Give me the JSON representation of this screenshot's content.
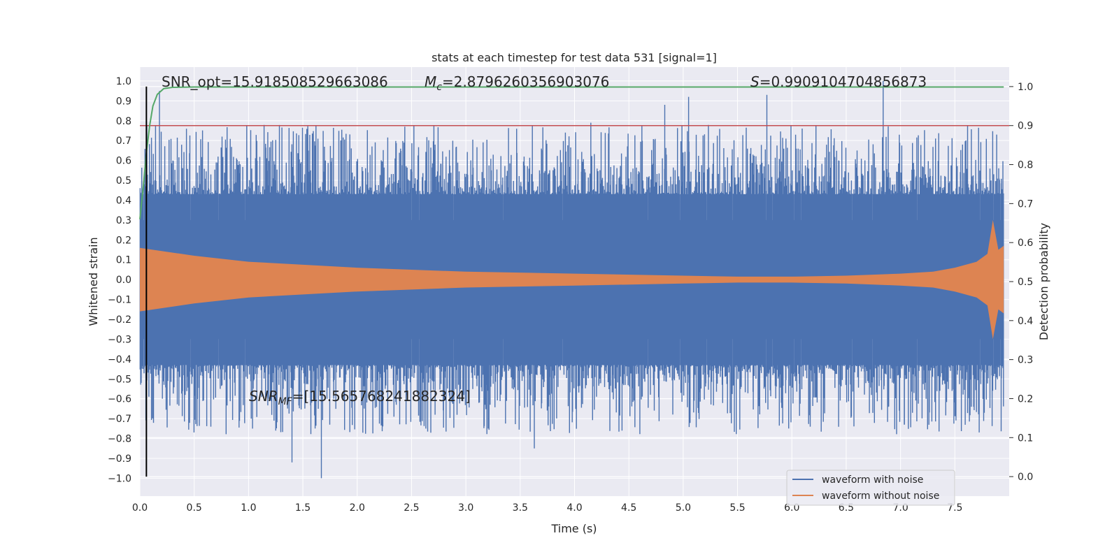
{
  "chart_data": {
    "type": "line",
    "title": "stats at each timestep for test data 531 [signal=1]",
    "xlabel": "Time (s)",
    "ylabel": "Whitened strain",
    "y2label": "Detection probability",
    "xlim": [
      0.0,
      8.0
    ],
    "ylim": [
      -1.09,
      1.07
    ],
    "y2lim": [
      -0.05,
      1.05
    ],
    "xticks": [
      0.0,
      0.5,
      1.0,
      1.5,
      2.0,
      2.5,
      3.0,
      3.5,
      4.0,
      4.5,
      5.0,
      5.5,
      6.0,
      6.5,
      7.0,
      7.5
    ],
    "xtick_labels": [
      "0.0",
      "0.5",
      "1.0",
      "1.5",
      "2.0",
      "2.5",
      "3.0",
      "3.5",
      "4.0",
      "4.5",
      "5.0",
      "5.5",
      "6.0",
      "6.5",
      "7.0",
      "7.5"
    ],
    "yticks": [
      1.0,
      0.9,
      0.8,
      0.7,
      0.6,
      0.5,
      0.4,
      0.3,
      0.2,
      0.1,
      0.0,
      -0.1,
      -0.2,
      -0.3,
      -0.4,
      -0.5,
      -0.6,
      -0.7,
      -0.8,
      -0.9,
      -1.0
    ],
    "ytick_labels": [
      "1.0",
      "0.9",
      "0.8",
      "0.7",
      "0.6",
      "0.5",
      "0.4",
      "0.3",
      "0.2",
      "0.1",
      "0.0",
      "−0.1",
      "−0.2",
      "−0.3",
      "−0.4",
      "−0.5",
      "−0.6",
      "−0.7",
      "−0.8",
      "−0.9",
      "−1.0"
    ],
    "y2ticks": [
      1.0,
      0.9,
      0.8,
      0.7,
      0.6,
      0.5,
      0.4,
      0.3,
      0.2,
      0.1,
      0.0
    ],
    "y2tick_labels": [
      "1.0",
      "0.9",
      "0.8",
      "0.7",
      "0.6",
      "0.5",
      "0.4",
      "0.3",
      "0.2",
      "0.1",
      "0.0"
    ],
    "annotations": {
      "snr_opt": "SNR_opt=15.918508529663086",
      "mc": "=2.8796260356903076",
      "s": "=0.9909104704856873",
      "snr_mf": "=[15.565768241882324]"
    },
    "legend": {
      "position": "lower right",
      "entries": [
        {
          "name": "waveform with noise",
          "color": "#4c72b0"
        },
        {
          "name": "waveform without noise",
          "color": "#dd8452"
        }
      ]
    },
    "series": [
      {
        "name": "waveform with noise",
        "axis": "left",
        "color": "#4c72b0",
        "envelope_upper": 0.43,
        "envelope_lower": -0.43,
        "peak_max": 1.0,
        "peak_min": -1.0
      },
      {
        "name": "waveform without noise",
        "axis": "left",
        "color": "#dd8452",
        "envelope_x": [
          0.0,
          0.5,
          1.0,
          2.0,
          3.0,
          4.0,
          5.0,
          5.5,
          6.0,
          6.5,
          7.0,
          7.3,
          7.5,
          7.7,
          7.8,
          7.85,
          7.9,
          7.95,
          8.0
        ],
        "envelope_y": [
          0.16,
          0.12,
          0.09,
          0.06,
          0.04,
          0.03,
          0.02,
          0.015,
          0.015,
          0.02,
          0.03,
          0.04,
          0.06,
          0.09,
          0.13,
          0.3,
          0.15,
          0.17,
          0.16
        ]
      },
      {
        "name": "detection probability",
        "axis": "right",
        "color": "#55a868",
        "x": [
          0.0,
          0.03,
          0.06,
          0.09,
          0.12,
          0.16,
          0.22,
          0.3,
          0.5,
          1.0,
          3.0,
          5.0,
          7.0,
          7.95
        ],
        "y": [
          0.66,
          0.74,
          0.83,
          0.9,
          0.95,
          0.98,
          0.995,
          0.998,
          0.999,
          0.999,
          0.999,
          0.999,
          0.999,
          0.999
        ]
      }
    ],
    "threshold_line": {
      "axis": "right",
      "value": 0.9,
      "color": "#c44e52"
    },
    "marker_line": {
      "x": 0.06,
      "color": "#000000"
    },
    "grid": true
  }
}
